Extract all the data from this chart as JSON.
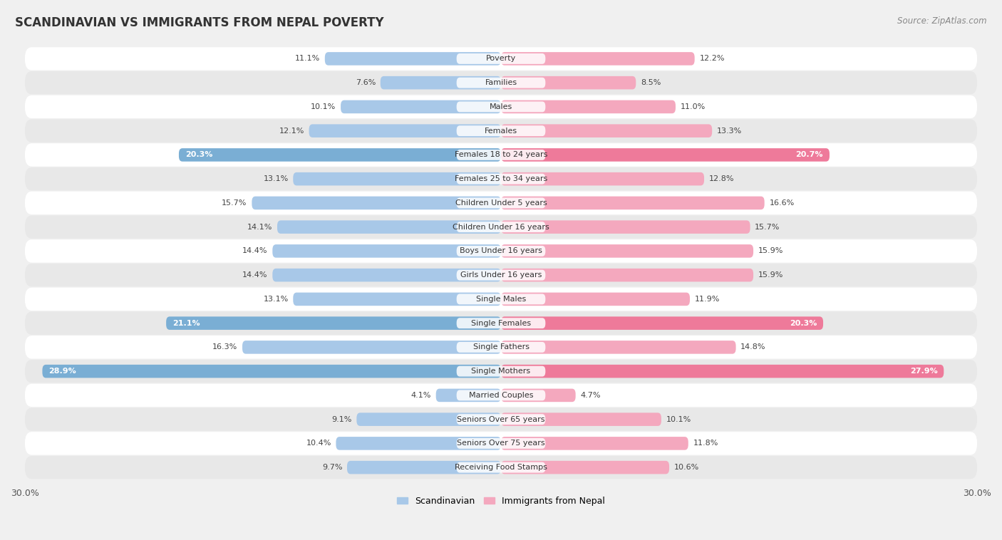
{
  "title": "SCANDINAVIAN VS IMMIGRANTS FROM NEPAL POVERTY",
  "source": "Source: ZipAtlas.com",
  "categories": [
    "Poverty",
    "Families",
    "Males",
    "Females",
    "Females 18 to 24 years",
    "Females 25 to 34 years",
    "Children Under 5 years",
    "Children Under 16 years",
    "Boys Under 16 years",
    "Girls Under 16 years",
    "Single Males",
    "Single Females",
    "Single Fathers",
    "Single Mothers",
    "Married Couples",
    "Seniors Over 65 years",
    "Seniors Over 75 years",
    "Receiving Food Stamps"
  ],
  "scandinavian": [
    11.1,
    7.6,
    10.1,
    12.1,
    20.3,
    13.1,
    15.7,
    14.1,
    14.4,
    14.4,
    13.1,
    21.1,
    16.3,
    28.9,
    4.1,
    9.1,
    10.4,
    9.7
  ],
  "nepal": [
    12.2,
    8.5,
    11.0,
    13.3,
    20.7,
    12.8,
    16.6,
    15.7,
    15.9,
    15.9,
    11.9,
    20.3,
    14.8,
    27.9,
    4.7,
    10.1,
    11.8,
    10.6
  ],
  "scand_color": "#a8c8e8",
  "nepal_color": "#f4a8be",
  "highlight_rows": [
    4,
    11,
    13
  ],
  "scand_color_dark": "#7aaed4",
  "nepal_color_dark": "#ee7a9a",
  "xlim": 30.0,
  "legend_scand": "Scandinavian",
  "legend_nepal": "Immigrants from Nepal",
  "bg_color": "#f0f0f0",
  "row_bg_light": "#ffffff",
  "row_bg_dark": "#e8e8e8"
}
